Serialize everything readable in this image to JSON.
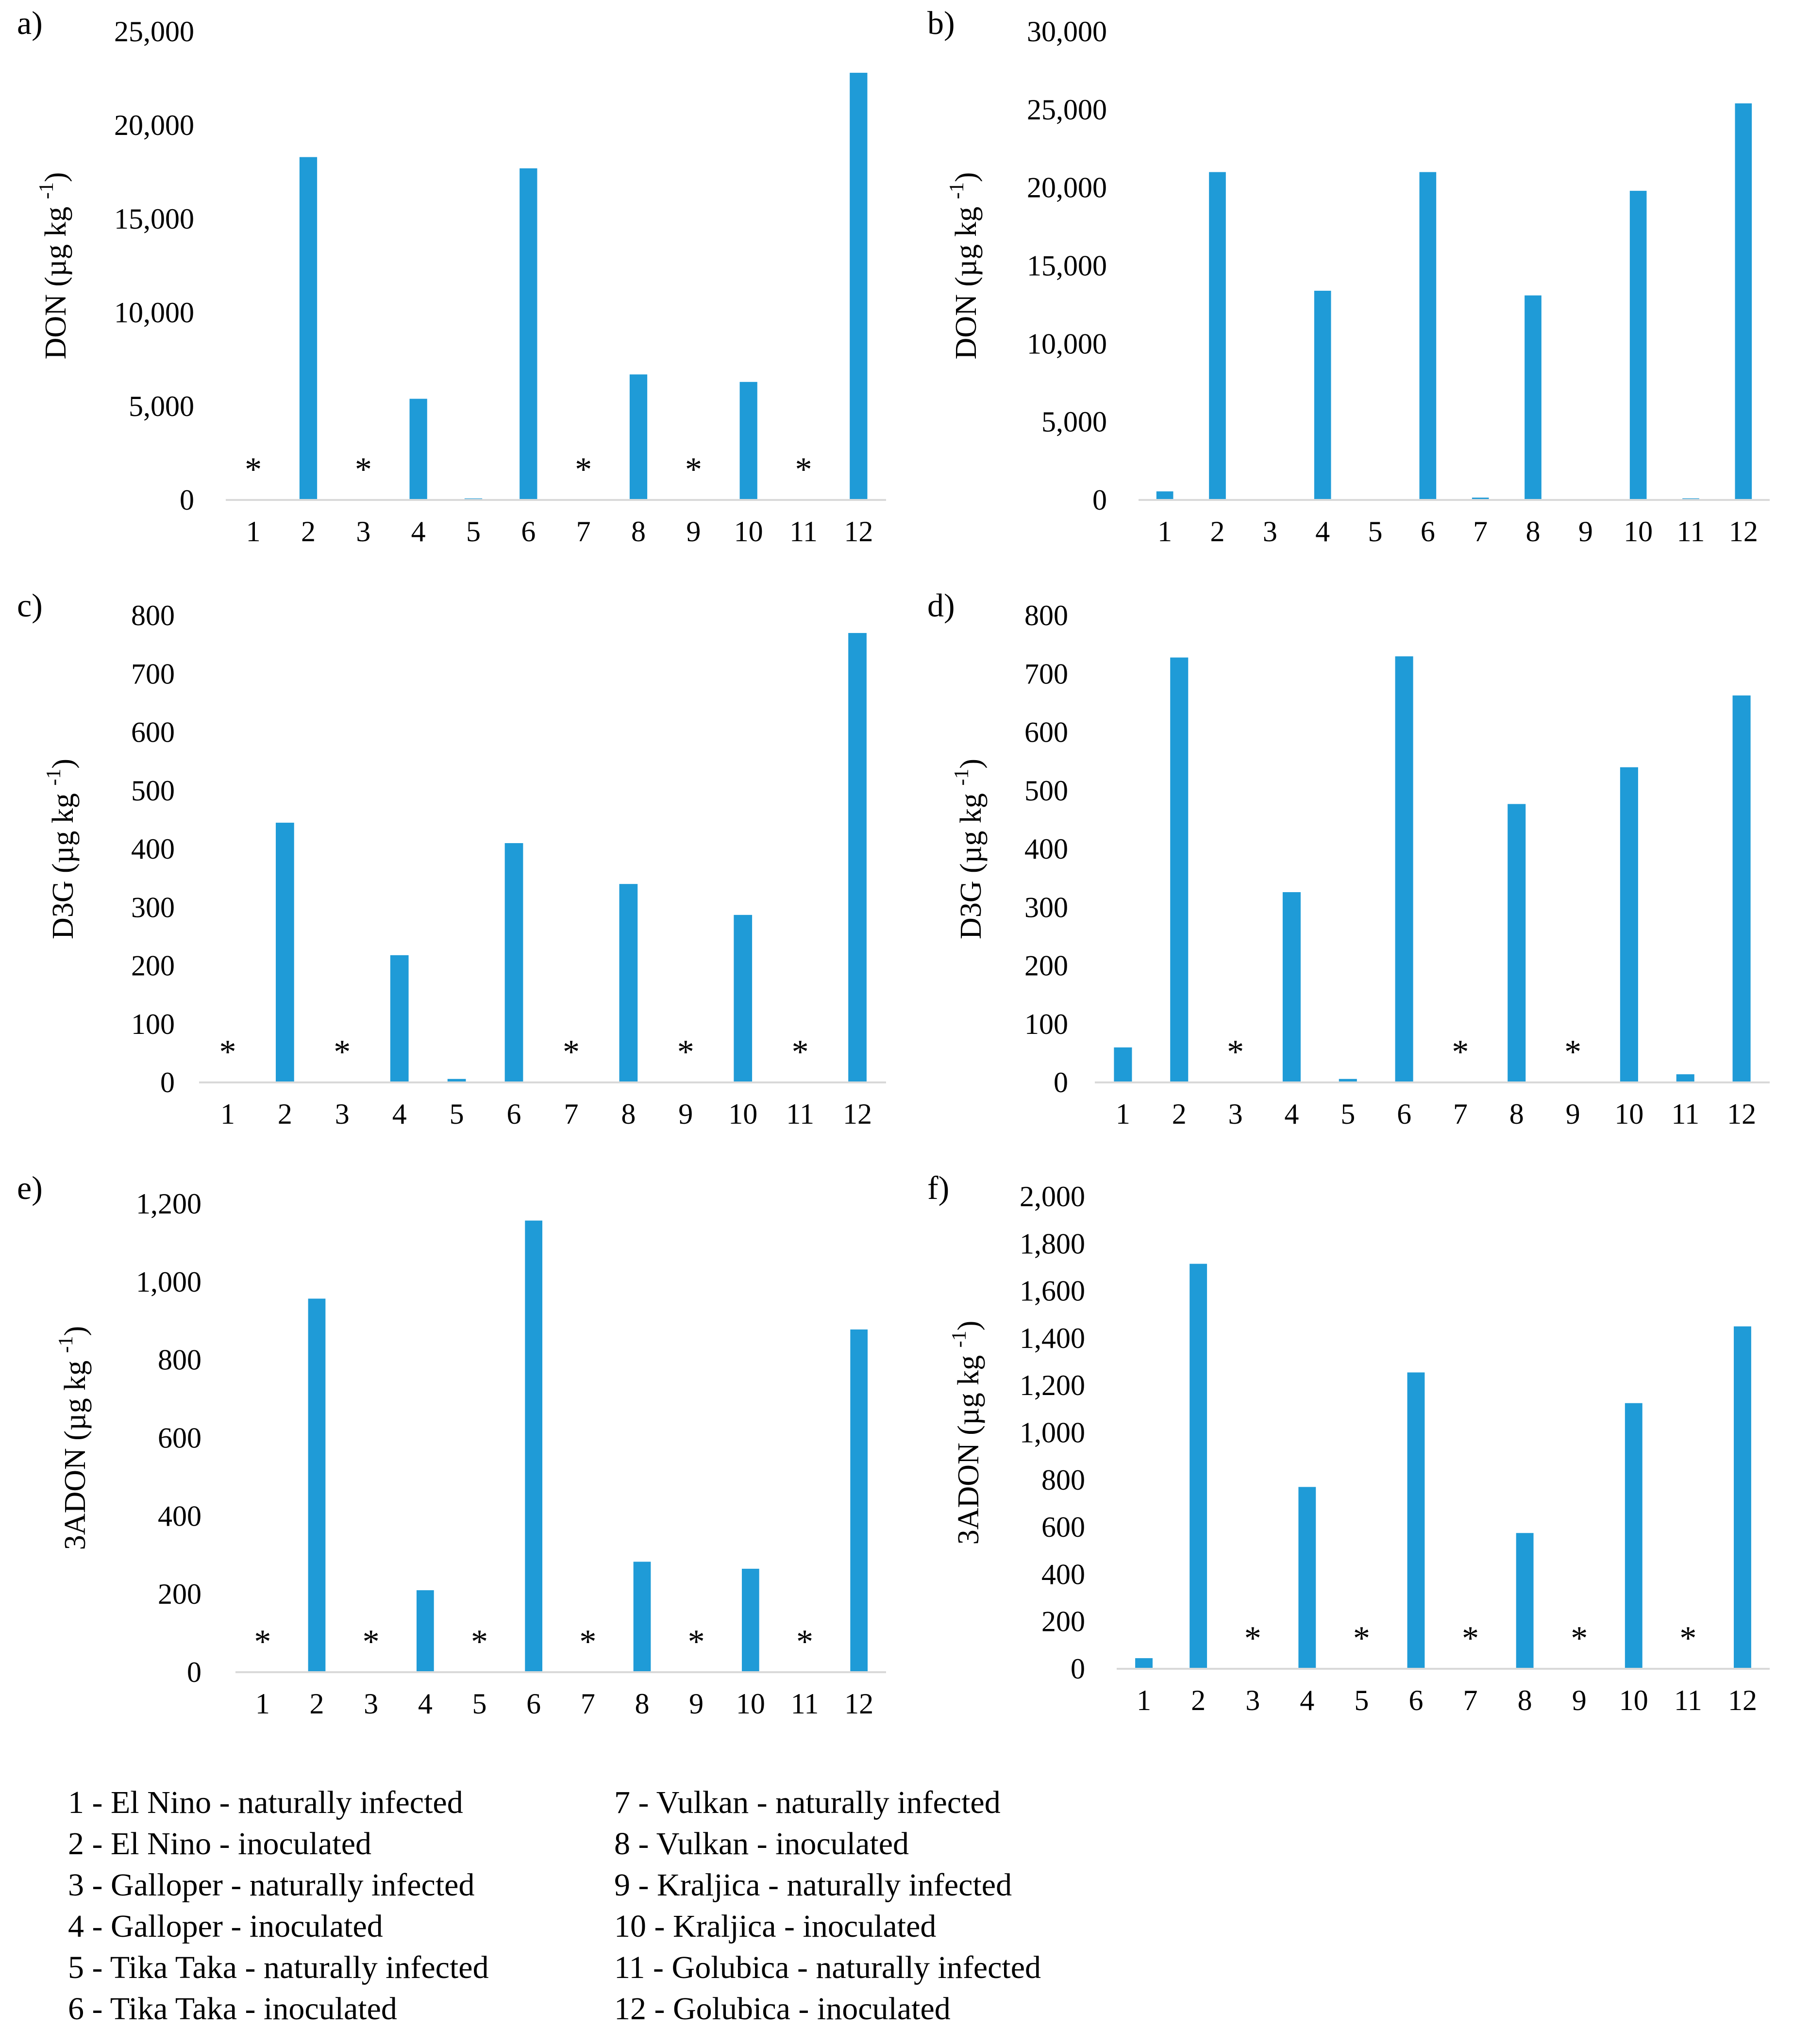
{
  "bar_color": "#1f9bd7",
  "axis_color": "#d9d9d9",
  "x_categories": [
    "1",
    "2",
    "3",
    "4",
    "5",
    "6",
    "7",
    "8",
    "9",
    "10",
    "11",
    "12"
  ],
  "chart_data": [
    {
      "panel": "a)",
      "type": "bar",
      "ylabel": "DON (µg kg -1)",
      "ylim": [
        0,
        25000
      ],
      "yticks": [
        0,
        5000,
        10000,
        15000,
        20000,
        25000
      ],
      "values": [
        null,
        18300,
        null,
        5400,
        80,
        17700,
        null,
        6700,
        null,
        6300,
        null,
        22800
      ],
      "not_detected_marker": "*"
    },
    {
      "panel": "b)",
      "type": "bar",
      "ylabel": "DON (µg kg -1)",
      "ylim": [
        0,
        30000
      ],
      "yticks": [
        0,
        5000,
        10000,
        15000,
        20000,
        25000,
        30000
      ],
      "values": [
        550,
        21000,
        0,
        13400,
        0,
        21000,
        150,
        13100,
        0,
        19800,
        100,
        25400
      ],
      "not_detected_marker": "*"
    },
    {
      "panel": "c)",
      "type": "bar",
      "ylabel": "D3G (µg kg -1)",
      "ylim": [
        0,
        800
      ],
      "yticks": [
        0,
        100,
        200,
        300,
        400,
        500,
        600,
        700,
        800
      ],
      "values": [
        null,
        445,
        null,
        218,
        6,
        410,
        null,
        340,
        null,
        287,
        null,
        770
      ],
      "not_detected_marker": "*"
    },
    {
      "panel": "d)",
      "type": "bar",
      "ylabel": "D3G (µg kg -1)",
      "ylim": [
        0,
        800
      ],
      "yticks": [
        0,
        100,
        200,
        300,
        400,
        500,
        600,
        700,
        800
      ],
      "values": [
        60,
        728,
        null,
        326,
        6,
        730,
        null,
        477,
        null,
        540,
        14,
        663
      ],
      "not_detected_marker": "*"
    },
    {
      "panel": "e)",
      "type": "bar",
      "ylabel": "3ADON (µg kg -1)",
      "ylim": [
        0,
        1200
      ],
      "yticks": [
        0,
        200,
        400,
        600,
        800,
        1000,
        1200
      ],
      "values": [
        null,
        957,
        null,
        210,
        null,
        1157,
        null,
        283,
        null,
        265,
        null,
        878
      ],
      "not_detected_marker": "*"
    },
    {
      "panel": "f)",
      "type": "bar",
      "ylabel": "3ADON (µg kg -1)",
      "ylim": [
        0,
        2000
      ],
      "yticks": [
        0,
        200,
        400,
        600,
        800,
        1000,
        1200,
        1400,
        1600,
        1800,
        2000
      ],
      "values": [
        45,
        1715,
        null,
        770,
        null,
        1255,
        null,
        575,
        null,
        1125,
        null,
        1450
      ],
      "not_detected_marker": "*"
    }
  ],
  "legend": [
    "1 - El Nino  - naturally infected",
    "2 - El Nino - inoculated",
    "3 - Galloper - naturally infected",
    "4 - Galloper - inoculated",
    "5 - Tika Taka - naturally infected",
    "6 - Tika Taka - inoculated",
    "7 - Vulkan - naturally infected",
    "8 - Vulkan - inoculated",
    "9 - Kraljica - naturally infected",
    "10 - Kraljica - inoculated",
    "11 - Golubica - naturally infected",
    "12 - Golubica - inoculated"
  ]
}
